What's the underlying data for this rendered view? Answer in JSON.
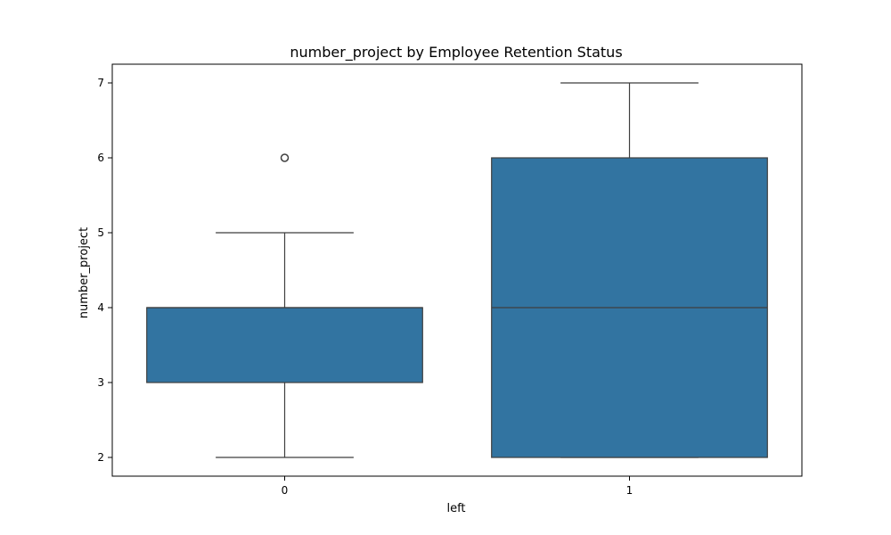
{
  "chart_data": {
    "type": "box",
    "title": "number_project by Employee Retention Status",
    "xlabel": "left",
    "ylabel": "number_project",
    "ylim": [
      1.75,
      7.25
    ],
    "yticks": [
      2,
      3,
      4,
      5,
      6,
      7
    ],
    "grid": false,
    "box_color": "#3274a1",
    "edge_color": "#3f3f3f",
    "groups": [
      {
        "category": "0",
        "whisker_low": 2,
        "q1": 3,
        "median": 4,
        "q3": 4,
        "whisker_high": 5,
        "outliers": [
          6
        ]
      },
      {
        "category": "1",
        "whisker_low": 2,
        "q1": 2,
        "median": 4,
        "q3": 6,
        "whisker_high": 7,
        "outliers": []
      }
    ]
  }
}
